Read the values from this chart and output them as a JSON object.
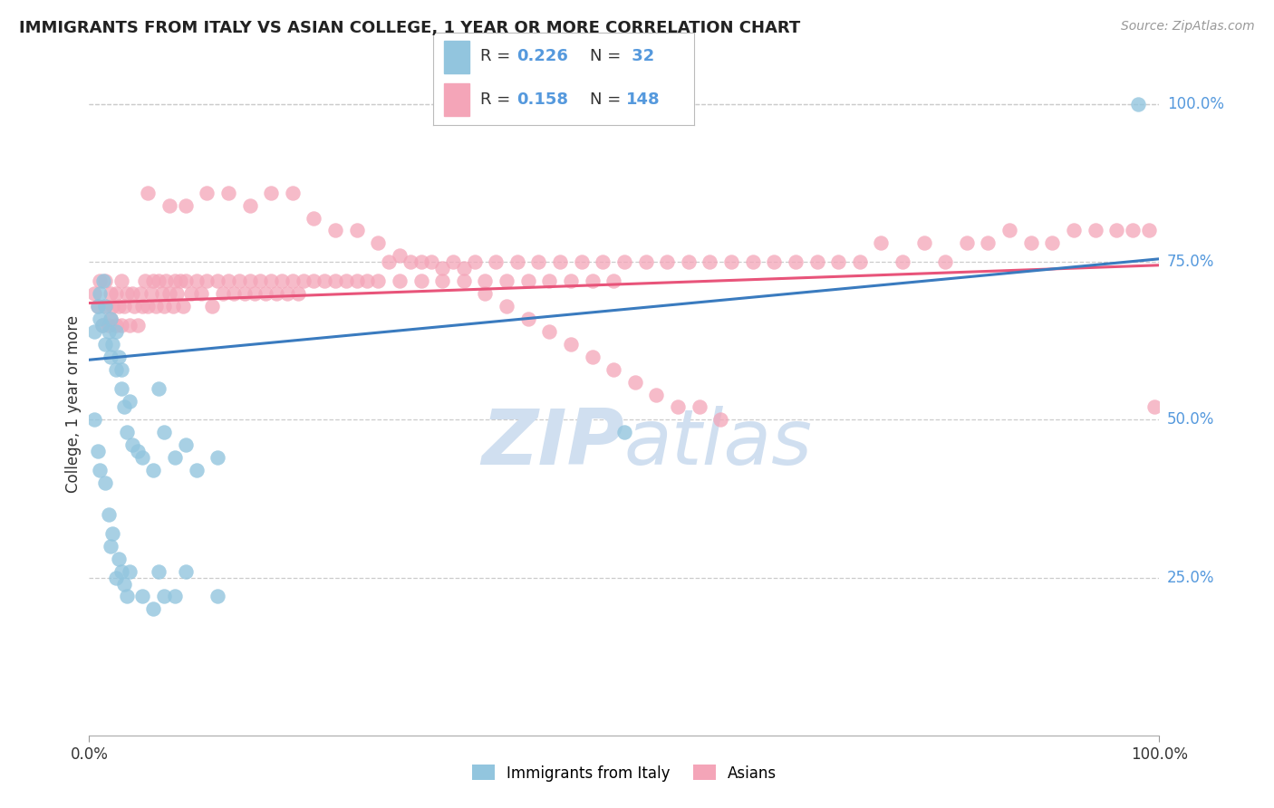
{
  "title": "IMMIGRANTS FROM ITALY VS ASIAN COLLEGE, 1 YEAR OR MORE CORRELATION CHART",
  "source": "Source: ZipAtlas.com",
  "ylabel": "College, 1 year or more",
  "xlim": [
    0.0,
    1.0
  ],
  "ylim": [
    0.0,
    1.05
  ],
  "y_tick_labels": [
    "25.0%",
    "50.0%",
    "75.0%",
    "100.0%"
  ],
  "y_tick_positions": [
    0.25,
    0.5,
    0.75,
    1.0
  ],
  "color_blue": "#92c5de",
  "color_pink": "#f4a5b8",
  "color_blue_line": "#3a7bbf",
  "color_pink_line": "#e8547a",
  "color_right_labels": "#5599dd",
  "watermark_color": "#d0dff0",
  "background_color": "#ffffff",
  "grid_color": "#cccccc",
  "italy_x": [
    0.005,
    0.008,
    0.01,
    0.01,
    0.012,
    0.013,
    0.015,
    0.015,
    0.018,
    0.02,
    0.02,
    0.022,
    0.025,
    0.025,
    0.028,
    0.03,
    0.03,
    0.033,
    0.035,
    0.038,
    0.04,
    0.045,
    0.05,
    0.06,
    0.065,
    0.07,
    0.08,
    0.09,
    0.1,
    0.12,
    0.5,
    0.98
  ],
  "italy_y": [
    0.64,
    0.68,
    0.7,
    0.66,
    0.65,
    0.72,
    0.62,
    0.68,
    0.64,
    0.6,
    0.66,
    0.62,
    0.64,
    0.58,
    0.6,
    0.55,
    0.58,
    0.52,
    0.48,
    0.53,
    0.46,
    0.45,
    0.44,
    0.42,
    0.55,
    0.48,
    0.44,
    0.46,
    0.42,
    0.44,
    0.48,
    1.0
  ],
  "italy_y_low": [
    0.005,
    0.008,
    0.01,
    0.015,
    0.018,
    0.02,
    0.022,
    0.025,
    0.028,
    0.03,
    0.033,
    0.035,
    0.038,
    0.05,
    0.06,
    0.065,
    0.07,
    0.08,
    0.09,
    0.12
  ],
  "italy_low_vals": [
    0.5,
    0.45,
    0.42,
    0.4,
    0.35,
    0.3,
    0.32,
    0.25,
    0.28,
    0.26,
    0.24,
    0.22,
    0.26,
    0.22,
    0.2,
    0.26,
    0.22,
    0.22,
    0.26,
    0.22
  ],
  "asian_x": [
    0.005,
    0.008,
    0.01,
    0.012,
    0.015,
    0.015,
    0.018,
    0.02,
    0.02,
    0.022,
    0.025,
    0.025,
    0.028,
    0.03,
    0.03,
    0.033,
    0.035,
    0.038,
    0.04,
    0.042,
    0.045,
    0.048,
    0.05,
    0.052,
    0.055,
    0.058,
    0.06,
    0.062,
    0.065,
    0.068,
    0.07,
    0.072,
    0.075,
    0.078,
    0.08,
    0.082,
    0.085,
    0.088,
    0.09,
    0.095,
    0.1,
    0.105,
    0.11,
    0.115,
    0.12,
    0.125,
    0.13,
    0.135,
    0.14,
    0.145,
    0.15,
    0.155,
    0.16,
    0.165,
    0.17,
    0.175,
    0.18,
    0.185,
    0.19,
    0.195,
    0.2,
    0.21,
    0.22,
    0.23,
    0.24,
    0.25,
    0.26,
    0.27,
    0.28,
    0.29,
    0.3,
    0.31,
    0.32,
    0.33,
    0.34,
    0.35,
    0.36,
    0.37,
    0.38,
    0.39,
    0.4,
    0.41,
    0.42,
    0.43,
    0.44,
    0.45,
    0.46,
    0.47,
    0.48,
    0.49,
    0.5,
    0.52,
    0.54,
    0.56,
    0.58,
    0.6,
    0.62,
    0.64,
    0.66,
    0.68,
    0.7,
    0.72,
    0.74,
    0.76,
    0.78,
    0.8,
    0.82,
    0.84,
    0.86,
    0.88,
    0.9,
    0.92,
    0.94,
    0.96,
    0.975,
    0.99,
    0.055,
    0.075,
    0.09,
    0.11,
    0.13,
    0.15,
    0.17,
    0.19,
    0.21,
    0.23,
    0.25,
    0.27,
    0.29,
    0.31,
    0.33,
    0.35,
    0.37,
    0.39,
    0.41,
    0.43,
    0.45,
    0.47,
    0.49,
    0.51,
    0.53,
    0.55,
    0.57,
    0.59,
    0.995
  ],
  "asian_y": [
    0.7,
    0.68,
    0.72,
    0.65,
    0.68,
    0.72,
    0.65,
    0.7,
    0.66,
    0.68,
    0.65,
    0.7,
    0.68,
    0.72,
    0.65,
    0.68,
    0.7,
    0.65,
    0.7,
    0.68,
    0.65,
    0.7,
    0.68,
    0.72,
    0.68,
    0.7,
    0.72,
    0.68,
    0.72,
    0.7,
    0.68,
    0.72,
    0.7,
    0.68,
    0.72,
    0.7,
    0.72,
    0.68,
    0.72,
    0.7,
    0.72,
    0.7,
    0.72,
    0.68,
    0.72,
    0.7,
    0.72,
    0.7,
    0.72,
    0.7,
    0.72,
    0.7,
    0.72,
    0.7,
    0.72,
    0.7,
    0.72,
    0.7,
    0.72,
    0.7,
    0.72,
    0.72,
    0.72,
    0.72,
    0.72,
    0.72,
    0.72,
    0.72,
    0.75,
    0.72,
    0.75,
    0.72,
    0.75,
    0.72,
    0.75,
    0.72,
    0.75,
    0.72,
    0.75,
    0.72,
    0.75,
    0.72,
    0.75,
    0.72,
    0.75,
    0.72,
    0.75,
    0.72,
    0.75,
    0.72,
    0.75,
    0.75,
    0.75,
    0.75,
    0.75,
    0.75,
    0.75,
    0.75,
    0.75,
    0.75,
    0.75,
    0.75,
    0.78,
    0.75,
    0.78,
    0.75,
    0.78,
    0.78,
    0.8,
    0.78,
    0.78,
    0.8,
    0.8,
    0.8,
    0.8,
    0.8,
    0.86,
    0.84,
    0.84,
    0.86,
    0.86,
    0.84,
    0.86,
    0.86,
    0.82,
    0.8,
    0.8,
    0.78,
    0.76,
    0.75,
    0.74,
    0.74,
    0.7,
    0.68,
    0.66,
    0.64,
    0.62,
    0.6,
    0.58,
    0.56,
    0.54,
    0.52,
    0.52,
    0.5,
    0.52
  ],
  "italy_line_x": [
    0.0,
    1.0
  ],
  "italy_line_y": [
    0.595,
    0.755
  ],
  "asian_line_x": [
    0.0,
    1.0
  ],
  "asian_line_y": [
    0.685,
    0.745
  ]
}
